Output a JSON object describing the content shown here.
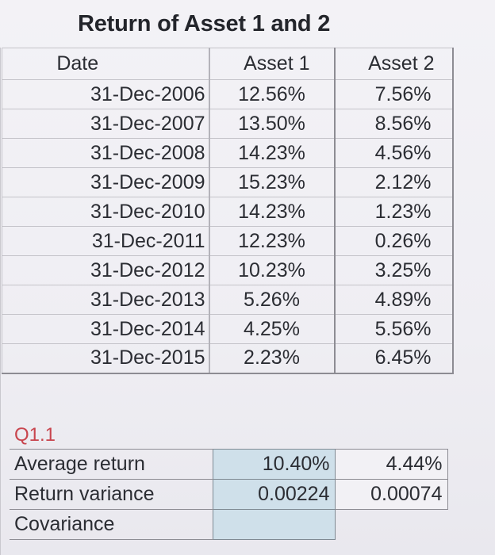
{
  "title": "Return of Asset 1 and 2",
  "table": {
    "headers": [
      "Date",
      "Asset 1",
      "Asset 2"
    ],
    "rows": [
      [
        "31-Dec-2006",
        "12.56%",
        "7.56%"
      ],
      [
        "31-Dec-2007",
        "13.50%",
        "8.56%"
      ],
      [
        "31-Dec-2008",
        "14.23%",
        "4.56%"
      ],
      [
        "31-Dec-2009",
        "15.23%",
        "2.12%"
      ],
      [
        "31-Dec-2010",
        "14.23%",
        "1.23%"
      ],
      [
        "31-Dec-2011",
        "12.23%",
        "0.26%"
      ],
      [
        "31-Dec-2012",
        "10.23%",
        "3.25%"
      ],
      [
        "31-Dec-2013",
        "5.26%",
        "4.89%"
      ],
      [
        "31-Dec-2014",
        "4.25%",
        "5.56%"
      ],
      [
        "31-Dec-2015",
        "2.23%",
        "6.45%"
      ]
    ]
  },
  "question": {
    "label": "Q1.1",
    "rows": [
      {
        "label": "Average return",
        "asset1": "10.40%",
        "asset2": "4.44%"
      },
      {
        "label": "Return variance",
        "asset1": "0.00224",
        "asset2": "0.00074"
      },
      {
        "label": "Covariance",
        "asset1": "",
        "asset2": ""
      }
    ]
  },
  "colors": {
    "question_label": "#c8454e",
    "highlight_cell": "#cfe0ea"
  }
}
